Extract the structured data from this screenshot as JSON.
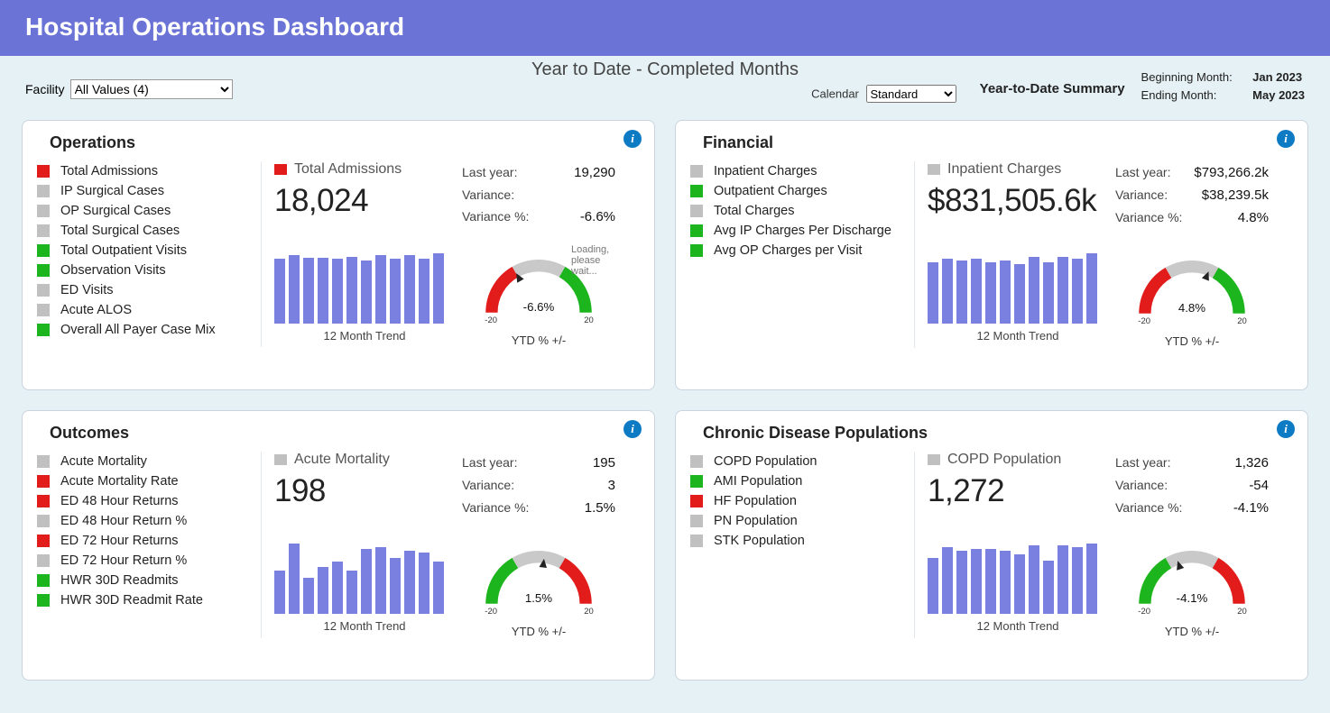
{
  "header": {
    "title": "Hospital Operations Dashboard"
  },
  "subheader": {
    "facility_label": "Facility",
    "facility_value": "All Values (4)",
    "center": "Year to Date - Completed Months",
    "calendar_label": "Calendar",
    "calendar_value": "Standard",
    "ytd_title": "Year-to-Date Summary",
    "begin_label": "Beginning Month:",
    "begin_value": "Jan 2023",
    "end_label": "Ending Month:",
    "end_value": "May 2023"
  },
  "labels": {
    "last_year": "Last year:",
    "variance": "Variance:",
    "variance_pct": "Variance %:",
    "trend_caption": "12 Month Trend",
    "gauge_caption": "YTD % +/-",
    "tick_lo": "-20",
    "tick_hi": "20"
  },
  "colors": {
    "red": "#e21b1b",
    "green": "#1db51d",
    "gray": "#c0c0c0",
    "darkgray": "#555555",
    "bar": "#7a80e0",
    "gauge_gray": "#c9c9c9"
  },
  "gauge": {
    "scale_min": -20,
    "scale_max": 20
  },
  "cards": {
    "operations": {
      "title": "Operations",
      "metrics": [
        {
          "label": "Total Admissions",
          "color": "#e21b1b"
        },
        {
          "label": "IP Surgical Cases",
          "color": "#c0c0c0"
        },
        {
          "label": "OP Surgical Cases",
          "color": "#c0c0c0"
        },
        {
          "label": "Total Surgical Cases",
          "color": "#c0c0c0"
        },
        {
          "label": "Total Outpatient Visits",
          "color": "#1db51d"
        },
        {
          "label": "Observation Visits",
          "color": "#1db51d"
        },
        {
          "label": "ED Visits",
          "color": "#c0c0c0"
        },
        {
          "label": "Acute ALOS",
          "color": "#c0c0c0"
        },
        {
          "label": "Overall All Payer Case Mix",
          "color": "#1db51d"
        }
      ],
      "selected": {
        "label": "Total Admissions",
        "marker_color": "#e21b1b",
        "value": "18,024",
        "last_year": "19,290",
        "variance": "",
        "variance_pct": "-6.6%",
        "loading_text": "Loading, please wait...",
        "trend_bars": [
          72,
          76,
          73,
          73,
          72,
          74,
          70,
          76,
          72,
          76,
          72,
          78
        ],
        "gauge": {
          "pct": -6.6,
          "label": "-6.6%",
          "left_color": "#e21b1b",
          "right_color": "#1db51d"
        }
      }
    },
    "financial": {
      "title": "Financial",
      "metrics": [
        {
          "label": "Inpatient Charges",
          "color": "#c0c0c0"
        },
        {
          "label": "Outpatient Charges",
          "color": "#1db51d"
        },
        {
          "label": "Total Charges",
          "color": "#c0c0c0"
        },
        {
          "label": "Avg IP Charges Per Discharge",
          "color": "#1db51d"
        },
        {
          "label": "Avg OP Charges per Visit",
          "color": "#1db51d"
        }
      ],
      "selected": {
        "label": "Inpatient Charges",
        "marker_color": "#c0c0c0",
        "value": "$831,505.6k",
        "last_year": "$793,266.2k",
        "variance": "$38,239.5k",
        "variance_pct": "4.8%",
        "trend_bars": [
          70,
          74,
          72,
          74,
          70,
          72,
          68,
          76,
          70,
          76,
          74,
          80
        ],
        "gauge": {
          "pct": 4.8,
          "label": "4.8%",
          "left_color": "#e21b1b",
          "right_color": "#1db51d"
        }
      }
    },
    "outcomes": {
      "title": "Outcomes",
      "metrics": [
        {
          "label": "Acute Mortality",
          "color": "#c0c0c0"
        },
        {
          "label": "Acute Mortality Rate",
          "color": "#e21b1b"
        },
        {
          "label": "ED 48 Hour Returns",
          "color": "#e21b1b"
        },
        {
          "label": "ED 48 Hour Return %",
          "color": "#c0c0c0"
        },
        {
          "label": "ED 72 Hour Returns",
          "color": "#e21b1b"
        },
        {
          "label": "ED 72 Hour Return %",
          "color": "#c0c0c0"
        },
        {
          "label": "HWR 30D Readmits",
          "color": "#1db51d"
        },
        {
          "label": "HWR 30D Readmit Rate",
          "color": "#1db51d"
        }
      ],
      "selected": {
        "label": "Acute Mortality",
        "marker_color": "#c0c0c0",
        "value": "198",
        "last_year": "195",
        "variance": "3",
        "variance_pct": "1.5%",
        "trend_bars": [
          48,
          78,
          40,
          52,
          58,
          48,
          72,
          74,
          62,
          70,
          68,
          58
        ],
        "gauge": {
          "pct": 1.5,
          "label": "1.5%",
          "left_color": "#1db51d",
          "right_color": "#e21b1b"
        }
      }
    },
    "chronic": {
      "title": "Chronic Disease Populations",
      "metrics": [
        {
          "label": "COPD Population",
          "color": "#c0c0c0"
        },
        {
          "label": "AMI Population",
          "color": "#1db51d"
        },
        {
          "label": "HF Population",
          "color": "#e21b1b"
        },
        {
          "label": "PN Population",
          "color": "#c0c0c0"
        },
        {
          "label": "STK Population",
          "color": "#c0c0c0"
        }
      ],
      "selected": {
        "label": "COPD Population",
        "marker_color": "#c0c0c0",
        "value": "1,272",
        "last_year": "1,326",
        "variance": "-54",
        "variance_pct": "-4.1%",
        "trend_bars": [
          64,
          76,
          72,
          74,
          74,
          72,
          68,
          78,
          60,
          78,
          76,
          80
        ],
        "gauge": {
          "pct": -4.1,
          "label": "-4.1%",
          "left_color": "#1db51d",
          "right_color": "#e21b1b"
        }
      }
    }
  }
}
